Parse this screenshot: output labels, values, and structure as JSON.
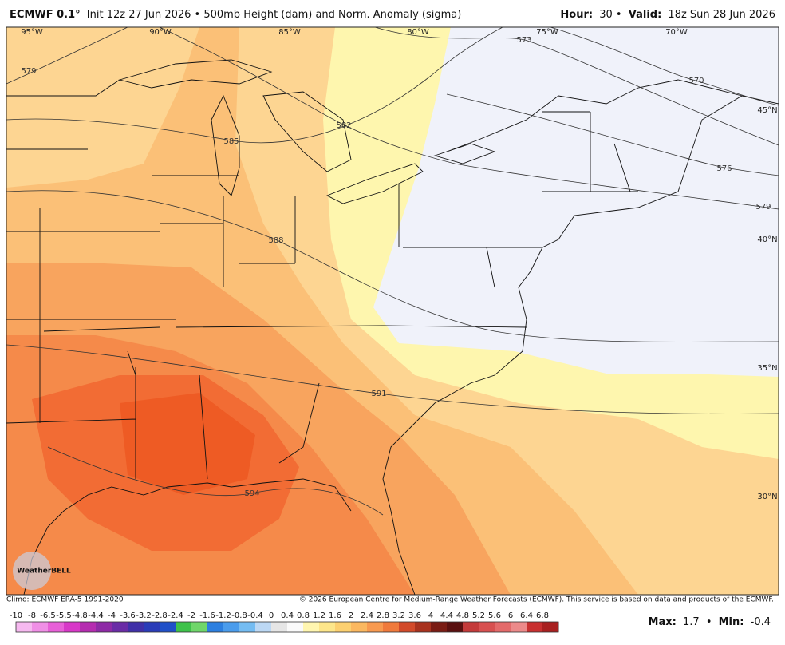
{
  "header": {
    "model": "ECMWF 0.1°",
    "title": "Init 12z 27 Jun 2026 • 500mb Height (dam) and Norm. Anomaly (sigma)",
    "hour_label": "Hour:",
    "hour": "30 •",
    "valid_label": "Valid:",
    "valid": "18z Sun 28 Jun 2026"
  },
  "map": {
    "lon_labels": [
      "95°W",
      "90°W",
      "85°W",
      "80°W",
      "75°W",
      "70°W"
    ],
    "lat_labels": [
      "45°N",
      "40°N",
      "35°N",
      "30°N"
    ],
    "contour_labels": [
      "579",
      "585",
      "582",
      "588",
      "573",
      "570",
      "576",
      "579",
      "591",
      "594"
    ],
    "logo": "WeatherBELL"
  },
  "footer": {
    "climo": "Climo: ECMWF ERA-5 1991-2020",
    "copyright": "© 2026 European Centre for Medium-Range Weather Forecasts (ECMWF). This service is based on data and products of the ECMWF."
  },
  "colorbar": {
    "ticks": [
      -10,
      -8,
      -6.5,
      -5.5,
      -4.8,
      -4.4,
      -4,
      -3.6,
      -3.2,
      -2.8,
      -2.4,
      -2,
      -1.6,
      -1.2,
      -0.8,
      -0.4,
      0,
      0.4,
      0.8,
      1.2,
      1.6,
      2,
      2.4,
      2.8,
      3.2,
      3.6,
      4,
      4.4,
      4.8,
      5.2,
      5.6,
      6,
      6.4,
      6.8
    ]
  },
  "stats": {
    "max_label": "Max:",
    "max": 1.7,
    "separator": "•",
    "min_label": "Min:",
    "min": -0.4
  }
}
